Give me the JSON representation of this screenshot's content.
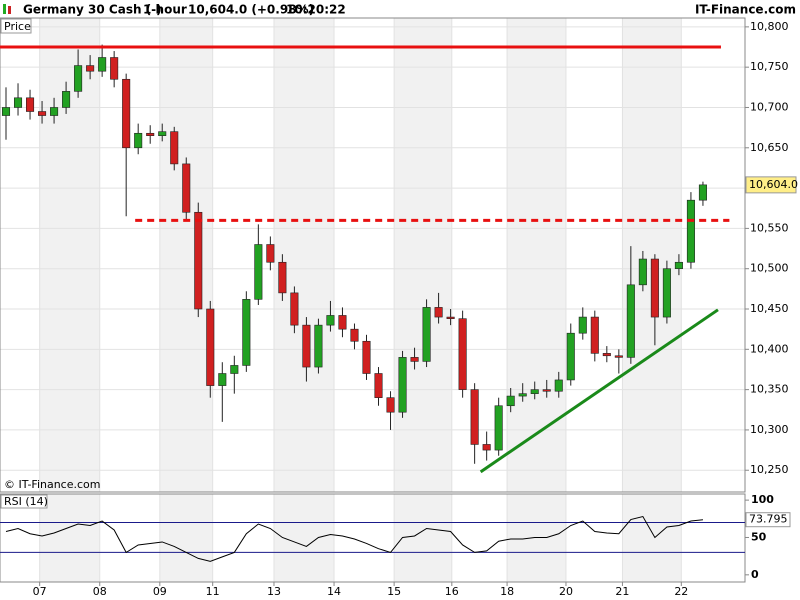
{
  "header": {
    "symbol": "Germany 30 Cash (-)",
    "interval": "1 hour",
    "last": "10,604.0 (+0.98%)",
    "time": "10:20:22",
    "brand": "IT-Finance.com"
  },
  "chart_data": [
    {
      "type": "candlestick",
      "title": "Price",
      "watermark": "© IT-Finance.com",
      "last_label": "10,604.0",
      "up_color": "#22a122",
      "down_color": "#d02020",
      "open": [
        10690,
        10700,
        10712,
        10695,
        10690,
        10700,
        10720,
        10752,
        10745,
        10762,
        10735,
        10650,
        10668,
        10665,
        10670,
        10630,
        10570,
        10450,
        10355,
        10370,
        10380,
        10462,
        10530,
        10508,
        10470,
        10430,
        10378,
        10430,
        10442,
        10425,
        10410,
        10370,
        10340,
        10322,
        10390,
        10385,
        10452,
        10440,
        10438,
        10350,
        10282,
        10275,
        10330,
        10342,
        10345,
        10350,
        10348,
        10362,
        10420,
        10440,
        10395,
        10392,
        10390,
        10480,
        10512,
        10440,
        10500,
        10508,
        10585
      ],
      "high": [
        10725,
        10730,
        10722,
        10708,
        10712,
        10732,
        10772,
        10765,
        10778,
        10770,
        10742,
        10680,
        10678,
        10680,
        10676,
        10638,
        10582,
        10460,
        10384,
        10392,
        10472,
        10555,
        10540,
        10518,
        10478,
        10440,
        10438,
        10460,
        10452,
        10432,
        10418,
        10378,
        10348,
        10398,
        10402,
        10462,
        10470,
        10450,
        10448,
        10358,
        10298,
        10340,
        10352,
        10358,
        10360,
        10362,
        10372,
        10432,
        10452,
        10448,
        10404,
        10400,
        10528,
        10522,
        10518,
        10510,
        10518,
        10595,
        10608
      ],
      "low": [
        10660,
        10690,
        10685,
        10680,
        10680,
        10692,
        10712,
        10735,
        10738,
        10725,
        10565,
        10642,
        10655,
        10658,
        10622,
        10560,
        10440,
        10340,
        10310,
        10345,
        10372,
        10455,
        10498,
        10460,
        10420,
        10360,
        10370,
        10422,
        10415,
        10400,
        10362,
        10330,
        10300,
        10315,
        10375,
        10378,
        10432,
        10430,
        10340,
        10258,
        10262,
        10268,
        10322,
        10335,
        10338,
        10340,
        10340,
        10355,
        10412,
        10385,
        10384,
        10370,
        10382,
        10472,
        10405,
        10432,
        10492,
        10500,
        10578
      ],
      "close": [
        10700,
        10712,
        10695,
        10690,
        10700,
        10720,
        10752,
        10745,
        10762,
        10735,
        10650,
        10668,
        10665,
        10670,
        10630,
        10570,
        10450,
        10355,
        10370,
        10380,
        10462,
        10530,
        10508,
        10470,
        10430,
        10378,
        10430,
        10442,
        10425,
        10410,
        10370,
        10340,
        10322,
        10390,
        10385,
        10452,
        10440,
        10438,
        10350,
        10282,
        10275,
        10330,
        10342,
        10345,
        10350,
        10348,
        10362,
        10420,
        10440,
        10395,
        10392,
        10390,
        10480,
        10512,
        10440,
        10500,
        10508,
        10585,
        10604
      ],
      "xlim": [
        0,
        62
      ],
      "xticks": [
        {
          "value": 3.3,
          "label": "07"
        },
        {
          "value": 8.3,
          "label": "08"
        },
        {
          "value": 13.3,
          "label": "09"
        },
        {
          "value": 17.7,
          "label": "11"
        },
        {
          "value": 22.8,
          "label": "13"
        },
        {
          "value": 27.8,
          "label": "14"
        },
        {
          "value": 32.8,
          "label": "15"
        },
        {
          "value": 37.6,
          "label": "16"
        },
        {
          "value": 42.2,
          "label": "18"
        },
        {
          "value": 47.1,
          "label": "20"
        },
        {
          "value": 51.8,
          "label": "21"
        },
        {
          "value": 56.7,
          "label": "22"
        }
      ],
      "ylim": [
        10223,
        10811
      ],
      "yticks": [
        {
          "value": 10250,
          "label": "10,250"
        },
        {
          "value": 10300,
          "label": "10,300"
        },
        {
          "value": 10350,
          "label": "10,350"
        },
        {
          "value": 10400,
          "label": "10,400"
        },
        {
          "value": 10450,
          "label": "10,450"
        },
        {
          "value": 10500,
          "label": "10,500"
        },
        {
          "value": 10550,
          "label": "10,550"
        },
        {
          "value": 10600,
          "label": "10,600"
        },
        {
          "value": 10650,
          "label": "10,650"
        },
        {
          "value": 10700,
          "label": "10,700"
        },
        {
          "value": 10750,
          "label": "10,750"
        },
        {
          "value": 10800,
          "label": "10,800"
        }
      ],
      "hlines": [
        {
          "value": 10775,
          "xrange": [
            0,
            60
          ],
          "color": "#e81010",
          "style": "solid"
        },
        {
          "value": 10560,
          "xrange": [
            11.25,
            60.7
          ],
          "color": "#e81010",
          "style": "dashed"
        }
      ],
      "trendline": {
        "x": [
          40,
          59.75
        ],
        "y": [
          10248,
          10449
        ],
        "color": "#1a8a1a"
      }
    },
    {
      "type": "line",
      "title": "RSI (14)",
      "color": "#000000",
      "level_color": "#1a1a8a",
      "values": [
        58,
        62,
        55,
        52,
        56,
        62,
        68,
        66,
        72,
        60,
        30,
        40,
        42,
        44,
        38,
        30,
        22,
        18,
        24,
        30,
        55,
        68,
        62,
        50,
        44,
        38,
        50,
        54,
        52,
        48,
        42,
        35,
        30,
        50,
        52,
        62,
        60,
        58,
        40,
        30,
        32,
        45,
        48,
        48,
        50,
        50,
        55,
        66,
        72,
        58,
        56,
        55,
        74,
        78,
        50,
        64,
        66,
        72,
        73.795
      ],
      "levels": [
        30,
        70
      ],
      "ylim": [
        -9.6,
        108.2
      ],
      "yticks": [
        0,
        50,
        100
      ]
    }
  ]
}
